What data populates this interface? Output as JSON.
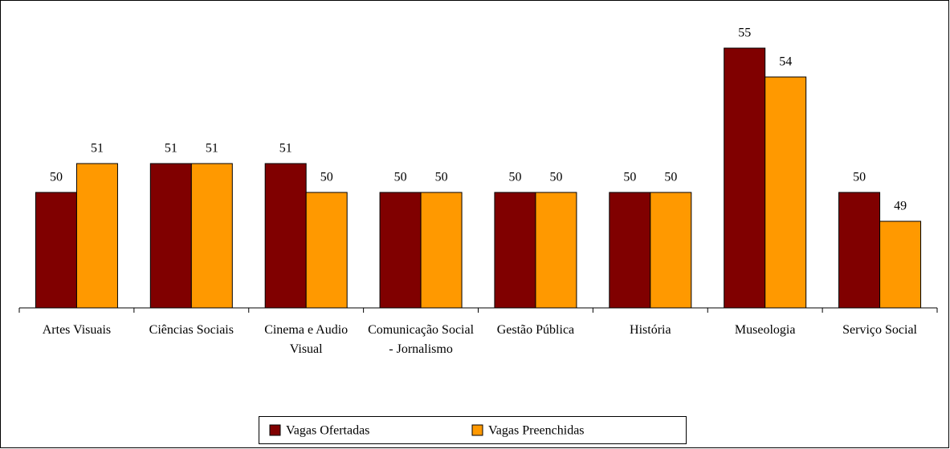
{
  "chart_data": {
    "type": "bar",
    "categories": [
      "Artes Visuais",
      "Ciências Sociais",
      "Cinema e Audio Visual",
      "Comunicação Social - Jornalismo",
      "Gestão Pública",
      "História",
      "Museologia",
      "Serviço Social"
    ],
    "series": [
      {
        "name": "Vagas Ofertadas",
        "color": "#800000",
        "values": [
          50,
          51,
          51,
          50,
          50,
          50,
          55,
          50
        ]
      },
      {
        "name": "Vagas Preenchidas",
        "color": "#FF9900",
        "values": [
          51,
          51,
          50,
          50,
          50,
          50,
          54,
          49
        ]
      }
    ],
    "ylim": [
      46,
      56
    ],
    "legend": "bottom"
  }
}
